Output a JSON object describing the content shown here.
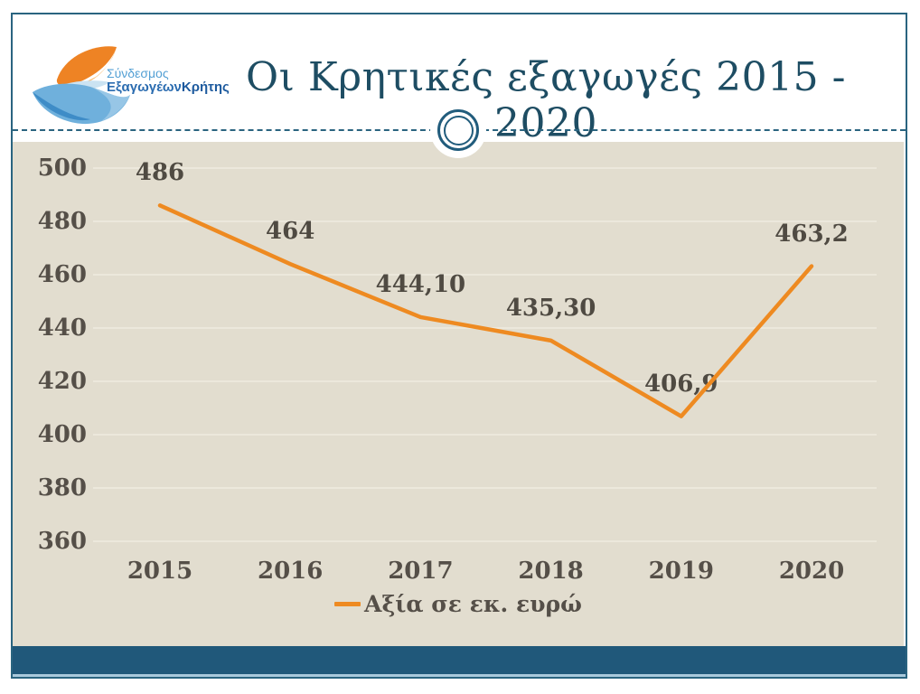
{
  "slide": {
    "logo": {
      "line1": "Σύνδεσμος",
      "line2_part1": "Εξαγωγέων",
      "line2_part2": "Κρήτης"
    },
    "title": "Οι Κρητικές εξαγωγές 2015 - 2020"
  },
  "chart_data": {
    "type": "line",
    "title": "Οι Κρητικές εξαγωγές 2015 - 2020",
    "categories": [
      "2015",
      "2016",
      "2017",
      "2018",
      "2019",
      "2020"
    ],
    "series": [
      {
        "name": "Αξία σε εκ. ευρώ",
        "values": [
          486,
          464,
          444.1,
          435.3,
          406.9,
          463.2
        ],
        "value_labels": [
          "486",
          "464",
          "444,10",
          "435,30",
          "406,9",
          "463,2"
        ],
        "color": "#ee8a21"
      }
    ],
    "xlabel": "",
    "ylabel": "",
    "ylim": [
      360,
      500
    ],
    "yticks": [
      500,
      480,
      460,
      440,
      420,
      400,
      380,
      360
    ],
    "grid": true,
    "legend_position": "bottom-center",
    "plot_background": "#e2ddcf"
  },
  "colors": {
    "accent_orange": "#ee8a21",
    "frame_blue": "#2a6480",
    "footer_blue": "#20587a",
    "title_blue": "#1e4d63",
    "axis_text": "#554f48",
    "panel_beige": "#e2ddcf"
  }
}
